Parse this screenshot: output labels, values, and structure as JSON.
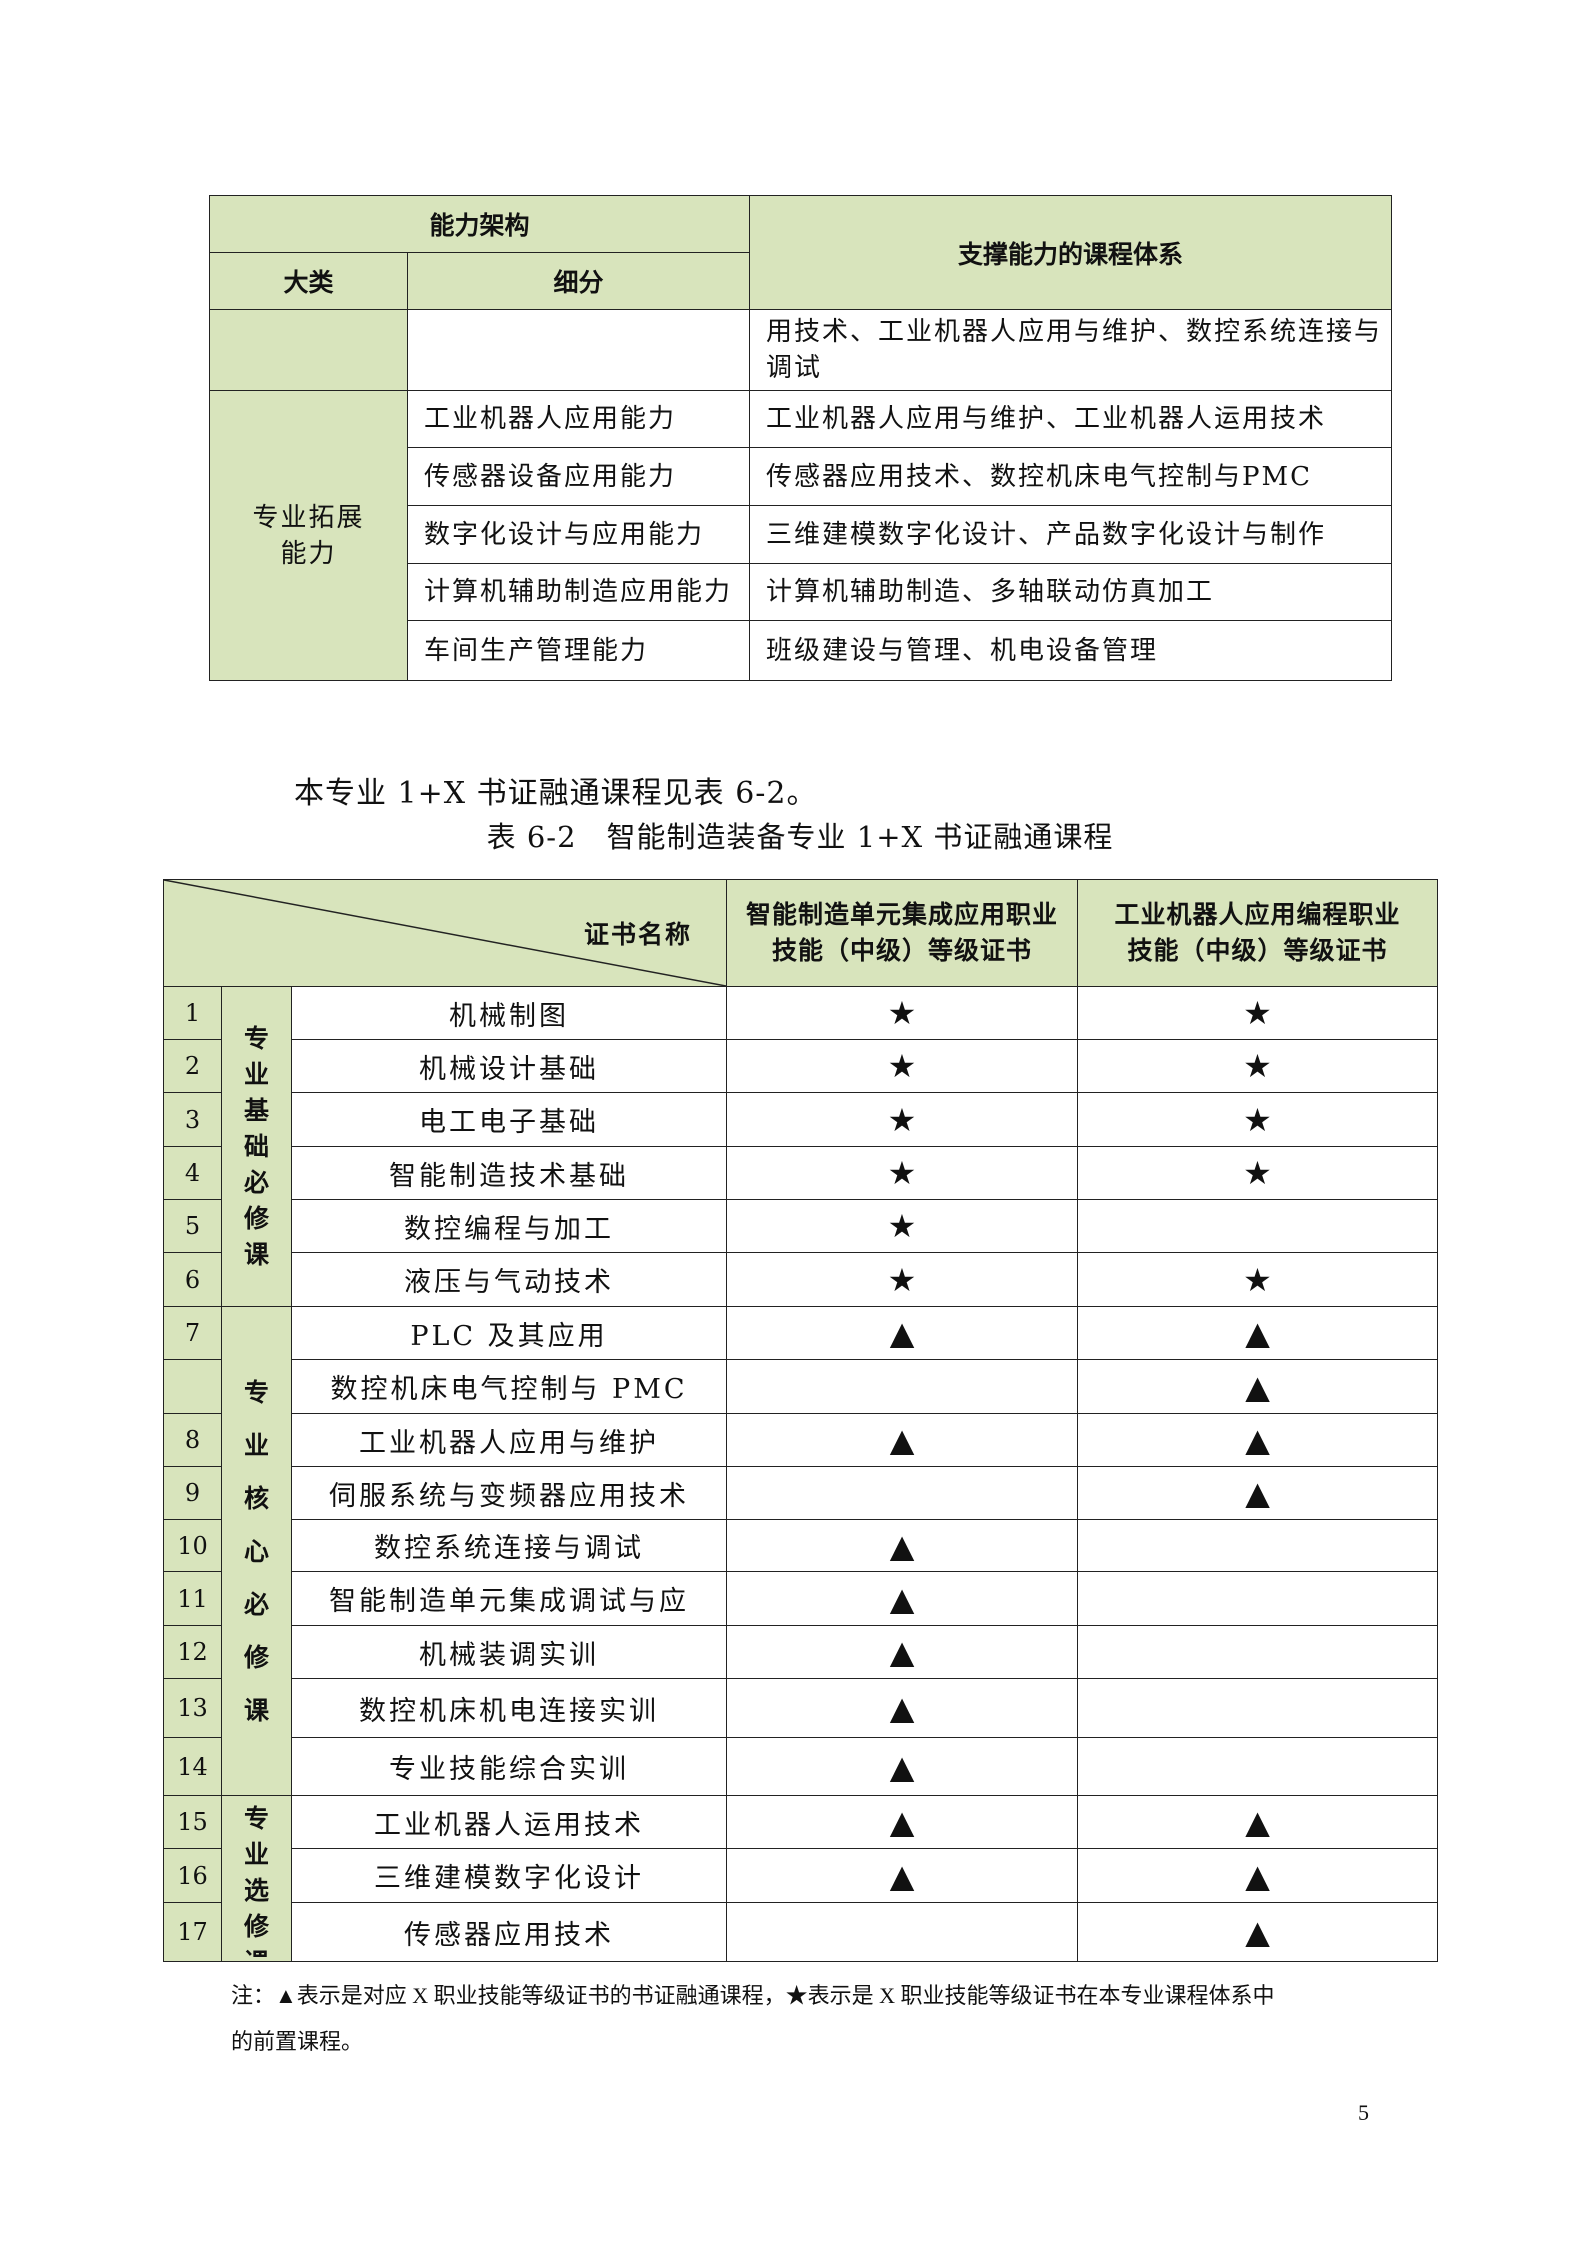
{
  "table1": {
    "header": {
      "group": "能力架构",
      "category": "大类",
      "detail": "细分",
      "courses": "支撑能力的课程体系"
    },
    "continued_row": {
      "courses": "用技术、工业机器人应用与维护、数控系统连接与调试"
    },
    "group_label": "专业拓展能力",
    "rows": [
      {
        "detail": "工业机器人应用能力",
        "courses": "工业机器人应用与维护、工业机器人运用技术"
      },
      {
        "detail": "传感器设备应用能力",
        "courses": "传感器应用技术、数控机床电气控制与PMC"
      },
      {
        "detail": "数字化设计与应用能力",
        "courses": "三维建模数字化设计、产品数字化设计与制作"
      },
      {
        "detail": "计算机辅助制造应用能力",
        "courses": "计算机辅助制造、多轴联动仿真加工"
      },
      {
        "detail": "车间生产管理能力",
        "courses": "班级建设与管理、机电设备管理"
      }
    ]
  },
  "intro_text": "本专业 1+X 书证融通课程见表 6-2。",
  "caption": "表 6-2　智能制造装备专业 1+X 书证融通课程",
  "table2": {
    "header": {
      "corner": "证书名称",
      "cert1": "智能制造单元集成应用职业技能（中级）等级证书",
      "cert2": "工业机器人应用编程职业技能（中级）等级证书"
    },
    "groups": [
      {
        "label": "专业基础必修课",
        "rows": 6
      },
      {
        "label": "专业核心必修课",
        "rows": 9
      },
      {
        "label": "专业选修课",
        "rows": 3
      }
    ],
    "rows": [
      {
        "num": "1",
        "name": "机械制图",
        "c1": "★",
        "c2": "★"
      },
      {
        "num": "2",
        "name": "机械设计基础",
        "c1": "★",
        "c2": "★"
      },
      {
        "num": "3",
        "name": "电工电子基础",
        "c1": "★",
        "c2": "★"
      },
      {
        "num": "4",
        "name": "智能制造技术基础",
        "c1": "★",
        "c2": "★"
      },
      {
        "num": "5",
        "name": "数控编程与加工",
        "c1": "★",
        "c2": ""
      },
      {
        "num": "6",
        "name": "液压与气动技术",
        "c1": "★",
        "c2": "★"
      },
      {
        "num": "7",
        "name": "PLC 及其应用",
        "c1": "▲",
        "c2": "▲"
      },
      {
        "num": "",
        "name": "数控机床电气控制与 PMC",
        "c1": "",
        "c2": "▲"
      },
      {
        "num": "8",
        "name": "工业机器人应用与维护",
        "c1": "▲",
        "c2": "▲"
      },
      {
        "num": "9",
        "name": "伺服系统与变频器应用技术",
        "c1": "",
        "c2": "▲"
      },
      {
        "num": "10",
        "name": "数控系统连接与调试",
        "c1": "▲",
        "c2": ""
      },
      {
        "num": "11",
        "name": "智能制造单元集成调试与应",
        "c1": "▲",
        "c2": ""
      },
      {
        "num": "12",
        "name": "机械装调实训",
        "c1": "▲",
        "c2": ""
      },
      {
        "num": "13",
        "name": "数控机床机电连接实训",
        "c1": "▲",
        "c2": ""
      },
      {
        "num": "14",
        "name": "专业技能综合实训",
        "c1": "▲",
        "c2": ""
      },
      {
        "num": "15",
        "name": "工业机器人运用技术",
        "c1": "▲",
        "c2": "▲"
      },
      {
        "num": "16",
        "name": "三维建模数字化设计",
        "c1": "▲",
        "c2": "▲"
      },
      {
        "num": "17",
        "name": "传感器应用技术",
        "c1": "",
        "c2": "▲"
      }
    ]
  },
  "note_line1": "注：▲表示是对应 X 职业技能等级证书的书证融通课程，★表示是 X 职业技能等级证书在本专业课程体系中",
  "note_line2": "的前置课程。",
  "page_number": "5",
  "colors": {
    "header_green": "#d8e4bc",
    "border": "#222222"
  }
}
